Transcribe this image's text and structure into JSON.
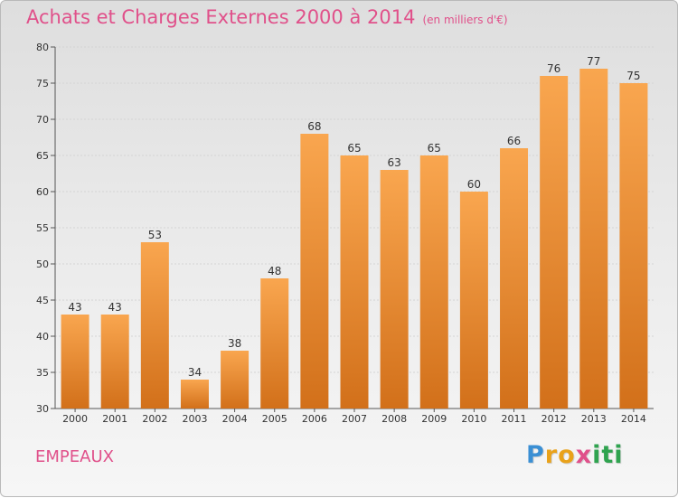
{
  "title": "Achats et Charges Externes 2000 à 2014",
  "subtitle": "(en milliers d'€)",
  "commune": "EMPEAUX",
  "logo": {
    "letters": [
      "P",
      "r",
      "o",
      "x",
      "i",
      "t",
      "i"
    ],
    "colors": [
      "#3a8fd4",
      "#e9a21a",
      "#e9a21a",
      "#e0508a",
      "#2fa34f",
      "#2fa34f",
      "#2fa34f"
    ]
  },
  "colors": {
    "bar_top": "#f9a64f",
    "bar_bottom": "#d2701a",
    "title": "#e0508a"
  },
  "chart_data": {
    "type": "bar",
    "categories": [
      "2000",
      "2001",
      "2002",
      "2003",
      "2004",
      "2005",
      "2006",
      "2007",
      "2008",
      "2009",
      "2010",
      "2011",
      "2012",
      "2013",
      "2014"
    ],
    "values": [
      43,
      43,
      53,
      34,
      38,
      48,
      68,
      65,
      63,
      65,
      60,
      66,
      76,
      77,
      75
    ],
    "ylim": [
      30,
      80
    ],
    "yticks": [
      30,
      35,
      40,
      45,
      50,
      55,
      60,
      65,
      70,
      75,
      80
    ],
    "grid": true,
    "xlabel": "",
    "ylabel": ""
  }
}
